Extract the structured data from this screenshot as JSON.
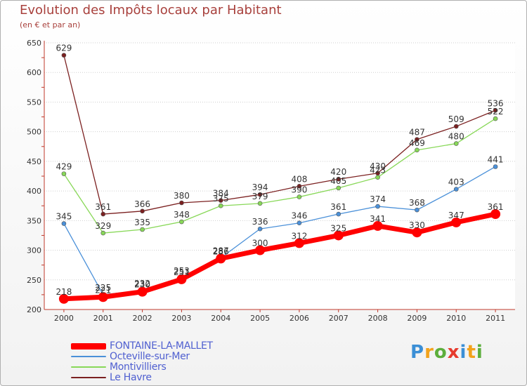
{
  "chart_data": {
    "type": "line",
    "title": "Evolution des Impôts locaux par Habitant",
    "subtitle": "(en € et par an)",
    "x": [
      "2000",
      "2001",
      "2002",
      "2003",
      "2004",
      "2005",
      "2006",
      "2007",
      "2008",
      "2009",
      "2010",
      "2011"
    ],
    "ylim": [
      200,
      650
    ],
    "yticks": [
      "200",
      "250",
      "300",
      "350",
      "400",
      "450",
      "500",
      "550",
      "600",
      "650"
    ],
    "grid": "horizontal",
    "legend_position": "bottom-left",
    "series": [
      {
        "name": "FONTAINE-LA-MALLET",
        "color": "#ff0000",
        "values": [
          218,
          221,
          230,
          251,
          286,
          300,
          312,
          325,
          341,
          330,
          347,
          361
        ]
      },
      {
        "name": "Octeville-sur-Mer",
        "color": "#4a90d9",
        "values": [
          345,
          225,
          232,
          253,
          287,
          336,
          346,
          361,
          374,
          368,
          403,
          441
        ]
      },
      {
        "name": "Montivilliers",
        "color": "#88d858",
        "values": [
          429,
          329,
          335,
          348,
          375,
          379,
          390,
          405,
          423,
          469,
          480,
          522
        ]
      },
      {
        "name": "Le Havre",
        "color": "#7b2020",
        "values": [
          629,
          361,
          366,
          380,
          384,
          394,
          408,
          420,
          430,
          487,
          509,
          536
        ]
      }
    ]
  },
  "brand": {
    "letters": [
      "P",
      "r",
      "o",
      "x",
      "i",
      "t",
      "i"
    ],
    "colors": [
      "#3b8fd6",
      "#f2a21b",
      "#5cae3c",
      "#e63b2e",
      "#3b8fd6",
      "#f2a21b",
      "#5cae3c"
    ]
  }
}
